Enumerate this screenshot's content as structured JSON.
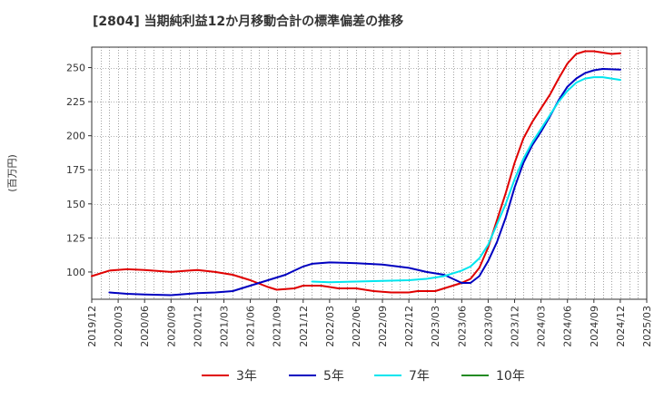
{
  "chart_data": {
    "type": "line",
    "title": "[2804]  当期純利益12か月移動合計の標準偏差の推移",
    "ylabel": "(百万円)",
    "xlabel": "",
    "ylim": [
      80,
      265
    ],
    "yticks": [
      100,
      125,
      150,
      175,
      200,
      225,
      250
    ],
    "xlim": [
      "2019-12",
      "2025-03"
    ],
    "x_ticks": [
      "2019/12",
      "2020/03",
      "2020/06",
      "2020/09",
      "2020/12",
      "2021/03",
      "2021/06",
      "2021/09",
      "2021/12",
      "2022/03",
      "2022/06",
      "2022/09",
      "2022/12",
      "2023/03",
      "2023/06",
      "2023/09",
      "2023/12",
      "2024/03",
      "2024/06",
      "2024/09",
      "2024/12",
      "2025/03"
    ],
    "grid": true,
    "legend_position": "bottom",
    "series": [
      {
        "name": "3年",
        "color": "#e00000",
        "points": [
          [
            "2019-12",
            97
          ],
          [
            "2020-02",
            101
          ],
          [
            "2020-04",
            102
          ],
          [
            "2020-06",
            101.5
          ],
          [
            "2020-09",
            100
          ],
          [
            "2020-11",
            101
          ],
          [
            "2020-12",
            101.5
          ],
          [
            "2021-02",
            100
          ],
          [
            "2021-04",
            98
          ],
          [
            "2021-06",
            94
          ],
          [
            "2021-08",
            89
          ],
          [
            "2021-09",
            87
          ],
          [
            "2021-11",
            88
          ],
          [
            "2021-12",
            90
          ],
          [
            "2022-02",
            90
          ],
          [
            "2022-04",
            88
          ],
          [
            "2022-06",
            88
          ],
          [
            "2022-08",
            86
          ],
          [
            "2022-10",
            85
          ],
          [
            "2022-12",
            85
          ],
          [
            "2023-01",
            86
          ],
          [
            "2023-03",
            86
          ],
          [
            "2023-05",
            90
          ],
          [
            "2023-06",
            92
          ],
          [
            "2023-07",
            95
          ],
          [
            "2023-08",
            103
          ],
          [
            "2023-09",
            118
          ],
          [
            "2023-10",
            138
          ],
          [
            "2023-11",
            158
          ],
          [
            "2023-12",
            180
          ],
          [
            "2024-01",
            198
          ],
          [
            "2024-02",
            210
          ],
          [
            "2024-03",
            220
          ],
          [
            "2024-04",
            230
          ],
          [
            "2024-05",
            242
          ],
          [
            "2024-06",
            253
          ],
          [
            "2024-07",
            260
          ],
          [
            "2024-08",
            262
          ],
          [
            "2024-09",
            262
          ],
          [
            "2024-10",
            261
          ],
          [
            "2024-11",
            260
          ],
          [
            "2024-12",
            260.5
          ]
        ]
      },
      {
        "name": "5年",
        "color": "#0000c0",
        "points": [
          [
            "2020-02",
            85
          ],
          [
            "2020-04",
            84
          ],
          [
            "2020-06",
            83.5
          ],
          [
            "2020-09",
            83
          ],
          [
            "2020-11",
            84
          ],
          [
            "2020-12",
            84.5
          ],
          [
            "2021-02",
            85
          ],
          [
            "2021-04",
            86
          ],
          [
            "2021-06",
            90
          ],
          [
            "2021-08",
            94
          ],
          [
            "2021-10",
            98
          ],
          [
            "2021-11",
            101
          ],
          [
            "2021-12",
            104
          ],
          [
            "2022-01",
            106
          ],
          [
            "2022-03",
            107
          ],
          [
            "2022-06",
            106.5
          ],
          [
            "2022-09",
            105.5
          ],
          [
            "2022-12",
            103
          ],
          [
            "2023-02",
            100
          ],
          [
            "2023-04",
            98
          ],
          [
            "2023-05",
            95
          ],
          [
            "2023-06",
            92
          ],
          [
            "2023-07",
            92
          ],
          [
            "2023-08",
            97
          ],
          [
            "2023-09",
            108
          ],
          [
            "2023-10",
            122
          ],
          [
            "2023-11",
            140
          ],
          [
            "2023-12",
            162
          ],
          [
            "2024-01",
            180
          ],
          [
            "2024-02",
            193
          ],
          [
            "2024-03",
            203
          ],
          [
            "2024-04",
            214
          ],
          [
            "2024-05",
            226
          ],
          [
            "2024-06",
            236
          ],
          [
            "2024-07",
            242
          ],
          [
            "2024-08",
            246
          ],
          [
            "2024-09",
            248
          ],
          [
            "2024-10",
            249
          ],
          [
            "2024-12",
            248.5
          ]
        ]
      },
      {
        "name": "7年",
        "color": "#00e5ee",
        "points": [
          [
            "2022-01",
            93
          ],
          [
            "2022-03",
            92.5
          ],
          [
            "2022-06",
            93
          ],
          [
            "2022-09",
            93.5
          ],
          [
            "2022-12",
            94
          ],
          [
            "2023-02",
            95
          ],
          [
            "2023-04",
            97
          ],
          [
            "2023-06",
            101
          ],
          [
            "2023-07",
            104
          ],
          [
            "2023-08",
            110
          ],
          [
            "2023-09",
            120
          ],
          [
            "2023-10",
            135
          ],
          [
            "2023-11",
            150
          ],
          [
            "2023-12",
            168
          ],
          [
            "2024-01",
            183
          ],
          [
            "2024-02",
            195
          ],
          [
            "2024-03",
            205
          ],
          [
            "2024-04",
            215
          ],
          [
            "2024-05",
            225
          ],
          [
            "2024-06",
            233
          ],
          [
            "2024-07",
            239
          ],
          [
            "2024-08",
            242
          ],
          [
            "2024-09",
            243
          ],
          [
            "2024-10",
            243
          ],
          [
            "2024-12",
            241
          ]
        ]
      },
      {
        "name": "10年",
        "color": "#228b22",
        "points": []
      }
    ]
  }
}
